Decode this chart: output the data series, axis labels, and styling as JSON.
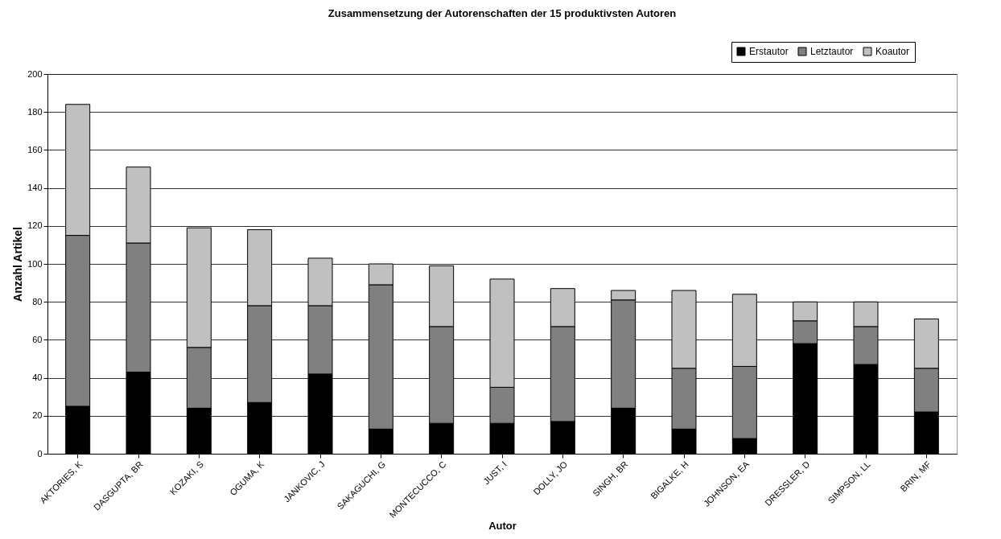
{
  "chart_data": {
    "type": "bar",
    "title": "Zusammensetzung der Autorenschaften der 15 produktivsten Autoren",
    "xlabel": "Autor",
    "ylabel": "Anzahl Artikel",
    "categories": [
      "AKTORIES, K",
      "DASGUPTA, BR",
      "KOZAKI, S",
      "OGUMA, K",
      "JANKOVIC, J",
      "SAKAGUCHI, G",
      "MONTECUCCO, C",
      "JUST, I",
      "DOLLY, JO",
      "SINGH, BR",
      "BIGALKE, H",
      "JOHNSON, EA",
      "DRESSLER, D",
      "SIMPSON, LL",
      "BRIN, MF"
    ],
    "series": [
      {
        "name": "Erstautor",
        "color": "#000000",
        "values": [
          25,
          43,
          24,
          27,
          42,
          13,
          16,
          16,
          17,
          24,
          13,
          8,
          58,
          47,
          22
        ]
      },
      {
        "name": "Letztautor",
        "color": "#808080",
        "values": [
          90,
          68,
          32,
          51,
          36,
          76,
          51,
          19,
          50,
          57,
          32,
          38,
          12,
          20,
          23
        ]
      },
      {
        "name": "Koautor",
        "color": "#c0c0c0",
        "values": [
          69,
          40,
          63,
          40,
          25,
          11,
          32,
          57,
          20,
          5,
          41,
          38,
          10,
          13,
          26
        ]
      }
    ],
    "stacked": true,
    "ylim": [
      0,
      200
    ],
    "yticks": [
      0,
      20,
      40,
      60,
      80,
      100,
      120,
      140,
      160,
      180,
      200
    ],
    "grid": "y",
    "legend": "top right"
  }
}
